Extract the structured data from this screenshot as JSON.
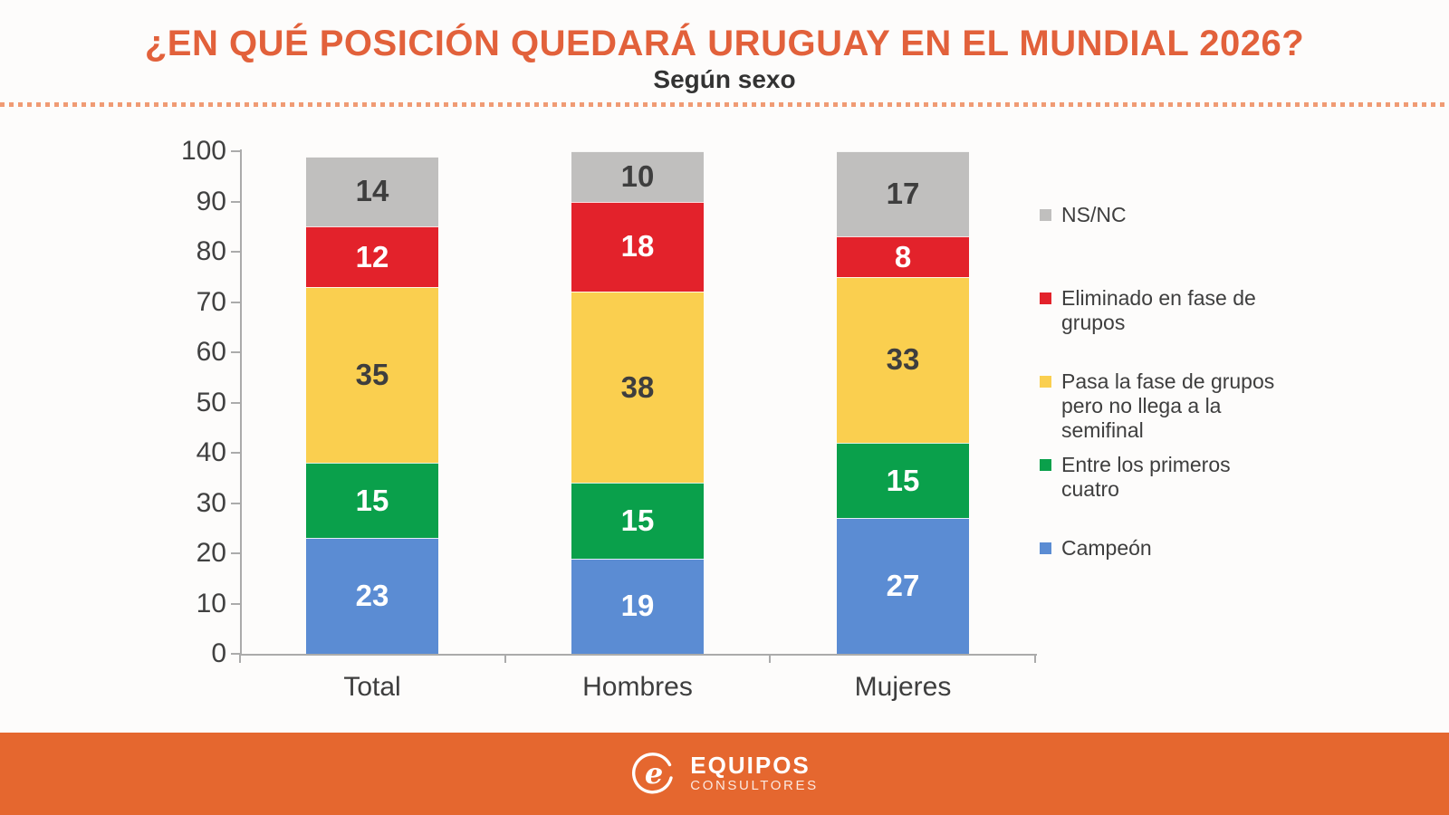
{
  "header": {
    "title": "¿EN QUÉ POSICIÓN QUEDARÁ URUGUAY EN EL MUNDIAL 2026?",
    "subtitle": "Según sexo"
  },
  "colors": {
    "title_orange": "#E2613B",
    "divider_orange": "#F09B74",
    "footer_orange": "#E5672F",
    "axis_gray": "#ABABAB",
    "text_dark": "#3E3E3E"
  },
  "chart_data": {
    "type": "bar",
    "stacked": true,
    "orientation": "vertical",
    "categories": [
      "Total",
      "Hombres",
      "Mujeres"
    ],
    "series": [
      {
        "name": "Campeón",
        "color": "#5B8CD3",
        "value_label_color": "#FFFFFF",
        "values": [
          23,
          19,
          27
        ]
      },
      {
        "name": "Entre los primeros cuatro",
        "color": "#0AA04B",
        "value_label_color": "#FFFFFF",
        "values": [
          15,
          15,
          15
        ]
      },
      {
        "name": "Pasa la fase de grupos pero no llega a la semifinal",
        "color": "#FACF4F",
        "value_label_color": "#3E3E3E",
        "values": [
          35,
          38,
          33
        ]
      },
      {
        "name": "Eliminado en fase de grupos",
        "color": "#E3222B",
        "value_label_color": "#FFFFFF",
        "values": [
          12,
          18,
          8
        ]
      },
      {
        "name": "NS/NC",
        "color": "#C0BFBE",
        "value_label_color": "#3E3E3E",
        "values": [
          14,
          10,
          17
        ]
      }
    ],
    "ylim": [
      0,
      100
    ],
    "yticks": [
      0,
      10,
      20,
      30,
      40,
      50,
      60,
      70,
      80,
      90,
      100
    ],
    "grid": false,
    "legend_position": "right",
    "legend_order": [
      "NS/NC",
      "Eliminado en fase de grupos",
      "Pasa la fase de grupos pero no llega a la semifinal",
      "Entre los primeros cuatro",
      "Campeón"
    ]
  },
  "footer": {
    "brand_name": "EQUIPOS",
    "brand_subtitle": "CONSULTORES"
  }
}
